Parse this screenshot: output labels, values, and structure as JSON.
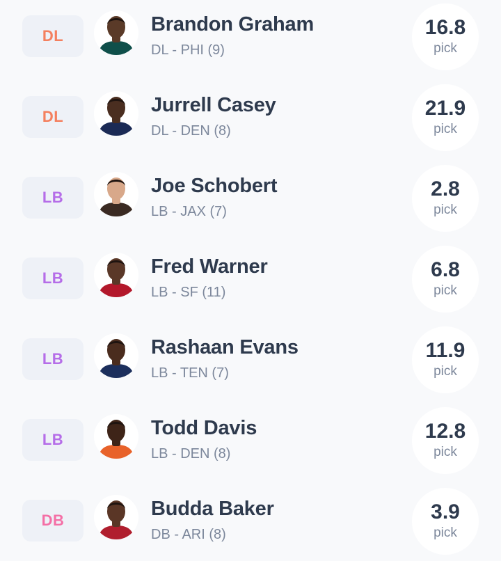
{
  "players": [
    {
      "pos": "DL",
      "pos_color": "#f47f5e",
      "name": "Brandon Graham",
      "meta": "DL - PHI (9)",
      "value": "16.8",
      "unit": "pick",
      "jersey": "#0f4f4a",
      "skin": "#5a3a28"
    },
    {
      "pos": "DL",
      "pos_color": "#f47f5e",
      "name": "Jurrell Casey",
      "meta": "DL - DEN (8)",
      "value": "21.9",
      "unit": "pick",
      "jersey": "#1b2a55",
      "skin": "#4a2e20"
    },
    {
      "pos": "LB",
      "pos_color": "#b56de8",
      "name": "Joe Schobert",
      "meta": "LB - JAX (7)",
      "value": "2.8",
      "unit": "pick",
      "jersey": "#3a2a22",
      "skin": "#d8a88a"
    },
    {
      "pos": "LB",
      "pos_color": "#b56de8",
      "name": "Fred Warner",
      "meta": "LB - SF (11)",
      "value": "6.8",
      "unit": "pick",
      "jersey": "#b3182b",
      "skin": "#5a3828"
    },
    {
      "pos": "LB",
      "pos_color": "#b56de8",
      "name": "Rashaan Evans",
      "meta": "LB - TEN (7)",
      "value": "11.9",
      "unit": "pick",
      "jersey": "#1c2f5c",
      "skin": "#4a2c1e"
    },
    {
      "pos": "LB",
      "pos_color": "#b56de8",
      "name": "Todd Davis",
      "meta": "LB - DEN (8)",
      "value": "12.8",
      "unit": "pick",
      "jersey": "#e8622a",
      "skin": "#3e2418"
    },
    {
      "pos": "DB",
      "pos_color": "#f46fa6",
      "name": "Budda Baker",
      "meta": "DB - ARI (8)",
      "value": "3.9",
      "unit": "pick",
      "jersey": "#b01e2e",
      "skin": "#5a3626"
    }
  ]
}
